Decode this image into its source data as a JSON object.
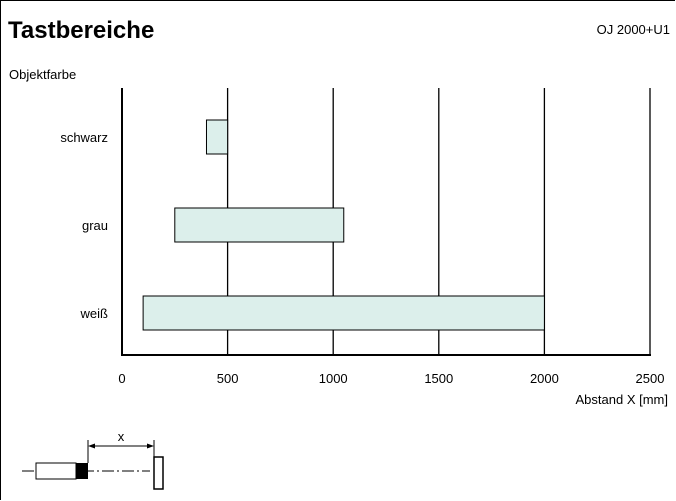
{
  "header": {
    "title": "Tastbereiche",
    "model": "OJ 2000+U1"
  },
  "chart_data": {
    "type": "bar",
    "orientation": "horizontal",
    "title": "Tastbereiche",
    "ylabel": "Objektfarbe",
    "xlabel": "Abstand X [mm]",
    "xlim": [
      0,
      2500
    ],
    "xticks": [
      0,
      500,
      1000,
      1500,
      2000,
      2500
    ],
    "grid": true,
    "categories": [
      "schwarz",
      "grau",
      "weiß"
    ],
    "ranges": [
      {
        "category": "schwarz",
        "start": 400,
        "end": 500
      },
      {
        "category": "grau",
        "start": 250,
        "end": 1050
      },
      {
        "category": "weiß",
        "start": 100,
        "end": 2000
      }
    ],
    "bar_color": "#dcefeb"
  },
  "diagram": {
    "distance_label": "x"
  }
}
